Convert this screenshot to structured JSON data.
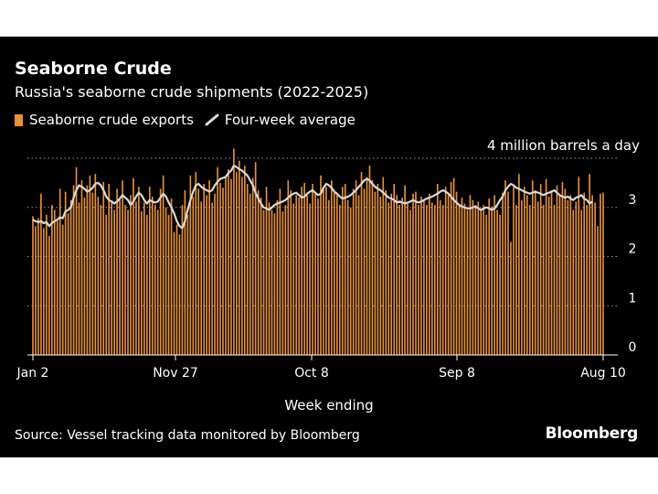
{
  "title": "Seaborne Crude",
  "subtitle": "Russia's seaborne crude shipments (2022-2025)",
  "legend": {
    "bars": "Seaborne crude exports",
    "line": "Four-week average"
  },
  "unit_label": "4 million barrels a day",
  "xlabel": "Week ending",
  "source": "Source: Vessel tracking data monitored by Bloomberg",
  "brand": "Bloomberg",
  "colors": {
    "background": "#000000",
    "bar": "#e8913a",
    "line": "#d9d9d9",
    "text": "#ffffff",
    "grid": "#9a9a9a"
  },
  "chart_data": {
    "type": "bar",
    "ylim": [
      0,
      4
    ],
    "yticks": [
      "0",
      "1",
      "2",
      "3"
    ],
    "grid": "horizontal dotted",
    "xtick_labels": [
      "Jan 2",
      "Nov 27",
      "Oct 8",
      "Sep 8",
      "Aug 10"
    ],
    "series": [
      {
        "name": "Seaborne crude exports",
        "kind": "bar",
        "values": [
          2.82,
          2.62,
          2.78,
          3.28,
          2.58,
          2.85,
          2.42,
          3.05,
          2.95,
          2.72,
          3.38,
          2.65,
          3.32,
          2.88,
          3.15,
          3.45,
          3.82,
          3.1,
          3.55,
          3.2,
          3.45,
          3.65,
          3.3,
          3.68,
          3.22,
          3.05,
          3.52,
          2.85,
          3.48,
          3.12,
          2.95,
          3.38,
          3.15,
          3.55,
          3.05,
          2.95,
          3.25,
          3.6,
          3.12,
          3.42,
          2.92,
          3.1,
          2.85,
          3.42,
          3.22,
          3.05,
          2.95,
          3.38,
          3.65,
          3.0,
          2.85,
          3.18,
          2.5,
          2.65,
          2.45,
          3.05,
          3.35,
          2.85,
          3.65,
          3.22,
          3.72,
          3.38,
          3.12,
          3.48,
          3.25,
          3.55,
          3.1,
          3.28,
          3.82,
          3.5,
          3.4,
          3.62,
          3.78,
          3.58,
          4.2,
          3.72,
          3.95,
          3.62,
          3.85,
          3.48,
          3.28,
          3.6,
          3.92,
          3.35,
          3.2,
          2.95,
          3.42,
          3.1,
          2.95,
          2.88,
          3.15,
          3.38,
          2.92,
          3.05,
          3.55,
          3.35,
          3.08,
          3.25,
          3.2,
          3.42,
          3.5,
          3.25,
          3.08,
          3.48,
          3.28,
          3.18,
          3.65,
          3.38,
          3.42,
          3.15,
          3.55,
          3.3,
          3.25,
          3.05,
          3.42,
          3.48,
          3.15,
          3.0,
          3.38,
          3.55,
          3.25,
          3.72,
          3.38,
          3.62,
          3.85,
          3.55,
          3.32,
          3.48,
          3.22,
          3.62,
          3.35,
          3.1,
          3.28,
          3.48,
          3.25,
          3.05,
          3.2,
          3.45,
          3.1,
          2.95,
          3.28,
          3.32,
          3.05,
          3.22,
          3.15,
          3.05,
          3.28,
          3.1,
          3.05,
          3.48,
          3.15,
          3.05,
          3.42,
          3.25,
          3.52,
          3.6,
          3.32,
          3.05,
          3.2,
          3.08,
          2.95,
          3.25,
          3.15,
          3.05,
          3.12,
          2.98,
          3.05,
          2.85,
          3.18,
          3.02,
          3.25,
          2.95,
          2.85,
          3.3,
          3.55,
          3.32,
          2.3,
          3.42,
          3.05,
          3.68,
          3.15,
          3.42,
          3.25,
          3.05,
          3.55,
          3.35,
          3.12,
          3.48,
          3.05,
          3.58,
          3.22,
          3.35,
          3.05,
          3.45,
          3.25,
          3.52,
          3.38,
          3.15,
          3.25,
          2.95,
          3.12,
          3.62,
          2.95,
          3.3,
          3.05,
          3.68,
          3.25,
          3.1,
          2.62,
          3.28,
          3.3
        ],
        "color": "#e8913a"
      },
      {
        "name": "Four-week average",
        "kind": "line",
        "values": [
          2.75,
          2.72,
          2.7,
          2.72,
          2.68,
          2.7,
          2.62,
          2.68,
          2.72,
          2.75,
          2.8,
          2.78,
          2.92,
          2.95,
          3.0,
          3.2,
          3.35,
          3.45,
          3.42,
          3.38,
          3.32,
          3.35,
          3.4,
          3.48,
          3.5,
          3.45,
          3.35,
          3.22,
          3.15,
          3.12,
          3.08,
          3.12,
          3.18,
          3.25,
          3.2,
          3.15,
          3.05,
          3.12,
          3.22,
          3.3,
          3.25,
          3.15,
          3.08,
          3.15,
          3.12,
          3.1,
          3.12,
          3.2,
          3.28,
          3.22,
          3.1,
          3.0,
          2.88,
          2.72,
          2.62,
          2.58,
          2.72,
          2.95,
          3.15,
          3.32,
          3.45,
          3.48,
          3.42,
          3.38,
          3.35,
          3.32,
          3.35,
          3.45,
          3.52,
          3.58,
          3.6,
          3.62,
          3.7,
          3.75,
          3.85,
          3.82,
          3.78,
          3.75,
          3.7,
          3.65,
          3.55,
          3.45,
          3.3,
          3.18,
          3.08,
          3.0,
          2.98,
          2.95,
          3.0,
          3.05,
          3.08,
          3.1,
          3.12,
          3.15,
          3.2,
          3.25,
          3.28,
          3.3,
          3.25,
          3.2,
          3.22,
          3.28,
          3.32,
          3.35,
          3.3,
          3.25,
          3.28,
          3.4,
          3.48,
          3.45,
          3.4,
          3.32,
          3.28,
          3.22,
          3.18,
          3.2,
          3.22,
          3.25,
          3.3,
          3.35,
          3.42,
          3.48,
          3.55,
          3.58,
          3.55,
          3.48,
          3.42,
          3.38,
          3.35,
          3.3,
          3.25,
          3.2,
          3.18,
          3.15,
          3.1,
          3.12,
          3.1,
          3.08,
          3.1,
          3.12,
          3.15,
          3.12,
          3.1,
          3.12,
          3.15,
          3.18,
          3.2,
          3.22,
          3.25,
          3.28,
          3.32,
          3.35,
          3.32,
          3.28,
          3.22,
          3.15,
          3.1,
          3.05,
          3.02,
          3.0,
          2.98,
          2.98,
          3.0,
          3.02,
          2.98,
          2.95,
          2.98,
          3.0,
          2.98,
          2.95,
          2.98,
          3.05,
          3.15,
          3.22,
          3.35,
          3.42,
          3.48,
          3.45,
          3.4,
          3.38,
          3.35,
          3.32,
          3.3,
          3.28,
          3.3,
          3.32,
          3.3,
          3.28,
          3.25,
          3.28,
          3.3,
          3.32,
          3.35,
          3.3,
          3.25,
          3.22,
          3.2,
          3.22,
          3.18,
          3.15,
          3.2,
          3.22,
          3.25,
          3.18,
          3.15,
          3.08,
          3.12
        ],
        "color": "#d9d9d9"
      }
    ]
  }
}
